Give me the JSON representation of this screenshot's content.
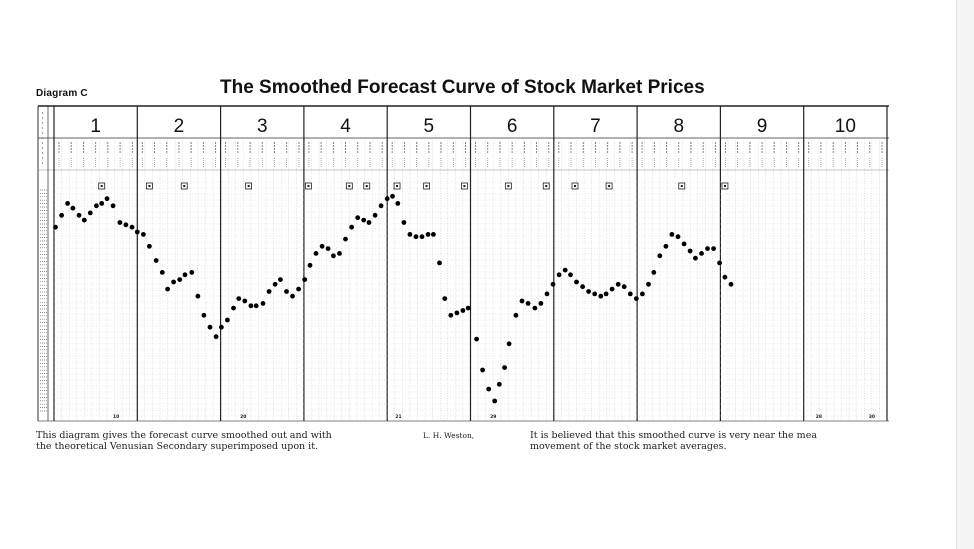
{
  "diagram_label": "Diagram C",
  "title": "The Smoothed Forecast Curve of Stock Market Prices",
  "caption_left_1": "This diagram gives the forecast curve smoothed out and with",
  "caption_left_2": "the theoretical Venusian Secondary superimposed upon it.",
  "author": "L. H. Weston,",
  "caption_right_1": "It is believed that this smoothed curve is very near the mea",
  "caption_right_2": "movement of the stock market averages.",
  "chart_data": {
    "type": "scatter",
    "title": "The Smoothed Forecast Curve of Stock Market Prices",
    "xlabel": "",
    "ylabel": "",
    "panels": [
      "1",
      "2",
      "3",
      "4",
      "5",
      "6",
      "7",
      "8",
      "9",
      "10"
    ],
    "columns_per_panel": 11,
    "x_range": [
      0,
      110
    ],
    "y_range": [
      0,
      100
    ],
    "grid": true,
    "bottom_marks": [
      {
        "x": 8.2,
        "label": "10"
      },
      {
        "x": 25,
        "label": "20"
      },
      {
        "x": 45.5,
        "label": "21"
      },
      {
        "x": 58,
        "label": "29"
      },
      {
        "x": 101,
        "label": "28"
      },
      {
        "x": 108,
        "label": "30"
      }
    ],
    "points": [
      [
        0.2,
        81
      ],
      [
        1.0,
        86
      ],
      [
        1.8,
        91
      ],
      [
        2.5,
        89
      ],
      [
        3.3,
        86
      ],
      [
        4.0,
        84
      ],
      [
        4.8,
        87
      ],
      [
        5.6,
        90
      ],
      [
        6.3,
        91
      ],
      [
        7.0,
        93
      ],
      [
        7.8,
        90
      ],
      [
        8.7,
        83
      ],
      [
        9.5,
        82
      ],
      [
        10.3,
        81
      ],
      [
        11.0,
        79
      ],
      [
        11.8,
        78
      ],
      [
        12.6,
        73
      ],
      [
        13.5,
        67
      ],
      [
        14.3,
        62
      ],
      [
        15.0,
        55
      ],
      [
        15.8,
        58
      ],
      [
        16.6,
        59
      ],
      [
        17.3,
        61
      ],
      [
        18.2,
        62
      ],
      [
        19.0,
        52
      ],
      [
        19.8,
        44
      ],
      [
        20.6,
        39
      ],
      [
        21.4,
        35
      ],
      [
        22.1,
        39
      ],
      [
        22.9,
        42
      ],
      [
        23.7,
        47
      ],
      [
        24.4,
        51
      ],
      [
        25.2,
        50
      ],
      [
        26.0,
        48
      ],
      [
        26.7,
        48
      ],
      [
        27.6,
        49
      ],
      [
        28.4,
        54
      ],
      [
        29.2,
        57
      ],
      [
        29.9,
        59
      ],
      [
        30.7,
        54
      ],
      [
        31.5,
        52
      ],
      [
        32.3,
        55
      ],
      [
        33.1,
        59
      ],
      [
        33.8,
        65
      ],
      [
        34.6,
        70
      ],
      [
        35.4,
        73
      ],
      [
        36.2,
        72
      ],
      [
        36.9,
        69
      ],
      [
        37.7,
        70
      ],
      [
        38.5,
        76
      ],
      [
        39.3,
        81
      ],
      [
        40.1,
        85
      ],
      [
        40.9,
        84
      ],
      [
        41.6,
        83
      ],
      [
        42.4,
        86
      ],
      [
        43.2,
        90
      ],
      [
        44.0,
        93
      ],
      [
        44.7,
        94
      ],
      [
        45.4,
        91
      ],
      [
        46.2,
        83
      ],
      [
        47.0,
        78
      ],
      [
        47.8,
        77
      ],
      [
        48.6,
        77
      ],
      [
        49.4,
        78
      ],
      [
        50.1,
        78
      ],
      [
        50.9,
        66
      ],
      [
        51.6,
        51
      ],
      [
        52.4,
        44
      ],
      [
        53.2,
        45
      ],
      [
        54.0,
        46
      ],
      [
        54.7,
        47
      ],
      [
        55.8,
        34
      ],
      [
        56.6,
        21
      ],
      [
        57.4,
        13
      ],
      [
        58.2,
        8
      ],
      [
        58.8,
        15
      ],
      [
        59.5,
        22
      ],
      [
        60.1,
        32
      ],
      [
        61.0,
        44
      ],
      [
        61.8,
        50
      ],
      [
        62.6,
        49
      ],
      [
        63.5,
        47
      ],
      [
        64.3,
        49
      ],
      [
        65.1,
        53
      ],
      [
        65.9,
        57
      ],
      [
        66.7,
        61
      ],
      [
        67.5,
        63
      ],
      [
        68.2,
        61
      ],
      [
        69.0,
        58
      ],
      [
        69.8,
        56
      ],
      [
        70.6,
        54
      ],
      [
        71.4,
        53
      ],
      [
        72.2,
        52
      ],
      [
        72.9,
        53
      ],
      [
        73.7,
        55
      ],
      [
        74.5,
        57
      ],
      [
        75.3,
        56
      ],
      [
        76.1,
        53
      ],
      [
        76.9,
        51
      ],
      [
        77.7,
        53
      ],
      [
        78.5,
        57
      ],
      [
        79.2,
        62
      ],
      [
        80.0,
        69
      ],
      [
        80.8,
        73
      ],
      [
        81.6,
        78
      ],
      [
        82.4,
        77
      ],
      [
        83.2,
        74
      ],
      [
        84.0,
        71
      ],
      [
        84.7,
        68
      ],
      [
        85.5,
        70
      ],
      [
        86.3,
        72
      ],
      [
        87.1,
        72
      ],
      [
        87.9,
        66
      ],
      [
        88.6,
        60
      ],
      [
        89.4,
        57
      ]
    ]
  }
}
